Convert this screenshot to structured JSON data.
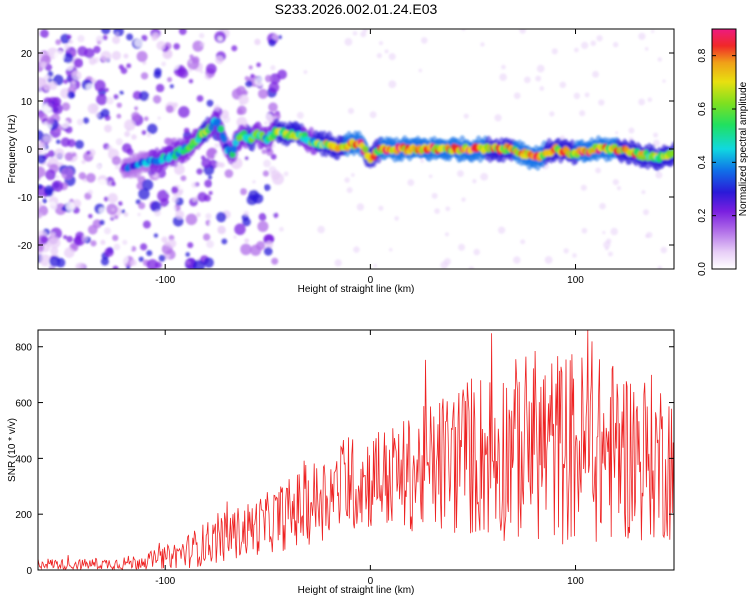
{
  "figure_title": "S233.2026.002.01.24.E03",
  "chart_data": [
    {
      "type": "heatmap",
      "name": "spectrogram",
      "xlabel": "Height of straight line (km)",
      "ylabel": "Frequency (Hz)",
      "xlim": [
        -162,
        148
      ],
      "ylim": [
        -25,
        25
      ],
      "xticks": [
        -100,
        0,
        100
      ],
      "xtick_labels": [
        "-100",
        "0",
        "100"
      ],
      "yticks": [
        -20,
        -10,
        0,
        10,
        20
      ],
      "ytick_labels": [
        "-20",
        "-10",
        "0",
        "10",
        "20"
      ],
      "colorbar": {
        "label": "Normalized spectral amplitude",
        "range": [
          0,
          0.9
        ],
        "ticks": [
          0,
          0.2,
          0.4,
          0.6,
          0.8
        ],
        "tick_labels": [
          "0.0",
          "0.2",
          "0.4",
          "0.6",
          "0.8"
        ]
      },
      "ridge": {
        "x": [
          -120,
          -110,
          -100,
          -90,
          -85,
          -80,
          -77,
          -75,
          -72,
          -70,
          -67,
          -65,
          -62,
          -58,
          -55,
          -50,
          -45,
          -40,
          -35,
          -30,
          -25,
          -20,
          -15,
          -10,
          -5,
          0,
          5,
          10,
          20,
          30,
          40,
          50,
          60,
          70,
          80,
          90,
          100,
          110,
          120,
          130,
          140,
          148
        ],
        "y": [
          -4,
          -3,
          -2,
          0,
          2,
          4,
          5,
          6,
          3,
          0,
          -1,
          2,
          3,
          2,
          3,
          2,
          4,
          3,
          3,
          2,
          1,
          1,
          0,
          1,
          1,
          -2,
          0,
          0,
          0,
          0,
          0,
          0,
          0,
          0,
          -2,
          0,
          -1,
          0,
          0,
          -1,
          -2,
          -1
        ],
        "amplitude": [
          0.35,
          0.4,
          0.45,
          0.5,
          0.55,
          0.6,
          0.55,
          0.5,
          0.45,
          0.4,
          0.45,
          0.5,
          0.55,
          0.6,
          0.55,
          0.5,
          0.6,
          0.65,
          0.6,
          0.55,
          0.6,
          0.65,
          0.7,
          0.8,
          0.85,
          0.7,
          0.75,
          0.8,
          0.75,
          0.8,
          0.75,
          0.85,
          0.7,
          0.75,
          0.8,
          0.7,
          0.75,
          0.8,
          0.75,
          0.7,
          0.65,
          0.6
        ]
      }
    },
    {
      "type": "line",
      "name": "snr",
      "xlabel": "Height of straight line (km)",
      "ylabel": "SNR (10 * v/v)",
      "xlim": [
        -162,
        148
      ],
      "ylim": [
        0,
        860
      ],
      "xticks": [
        -100,
        0,
        100
      ],
      "xtick_labels": [
        "-100",
        "0",
        "100"
      ],
      "yticks": [
        0,
        200,
        400,
        600,
        800
      ],
      "ytick_labels": [
        "0",
        "200",
        "400",
        "600",
        "800"
      ],
      "series": [
        {
          "name": "SNR",
          "color": "#ee2222",
          "x": [
            -162,
            -150,
            -140,
            -130,
            -120,
            -110,
            -100,
            -90,
            -80,
            -70,
            -60,
            -50,
            -40,
            -30,
            -20,
            -10,
            0,
            10,
            20,
            30,
            40,
            50,
            60,
            70,
            80,
            90,
            100,
            110,
            120,
            130,
            140,
            148
          ],
          "trend": [
            25,
            20,
            20,
            22,
            25,
            30,
            45,
            65,
            95,
            120,
            145,
            170,
            200,
            235,
            275,
            305,
            325,
            330,
            345,
            370,
            395,
            410,
            420,
            430,
            450,
            440,
            440,
            430,
            425,
            410,
            400,
            390
          ],
          "amplitude": [
            20,
            20,
            20,
            20,
            25,
            30,
            40,
            60,
            80,
            90,
            100,
            110,
            130,
            150,
            160,
            170,
            180,
            190,
            210,
            240,
            280,
            300,
            320,
            330,
            350,
            350,
            360,
            340,
            330,
            310,
            300,
            290
          ]
        }
      ]
    }
  ],
  "colors": {
    "colormap": [
      "#ffffff",
      "#e8cff7",
      "#b06de8",
      "#7a1fe0",
      "#2a1ad8",
      "#1070e8",
      "#10d8e0",
      "#20e060",
      "#7ee020",
      "#e8e010",
      "#f0a018",
      "#f02828",
      "#ee1a80"
    ],
    "snr_line": "#ee2222"
  }
}
